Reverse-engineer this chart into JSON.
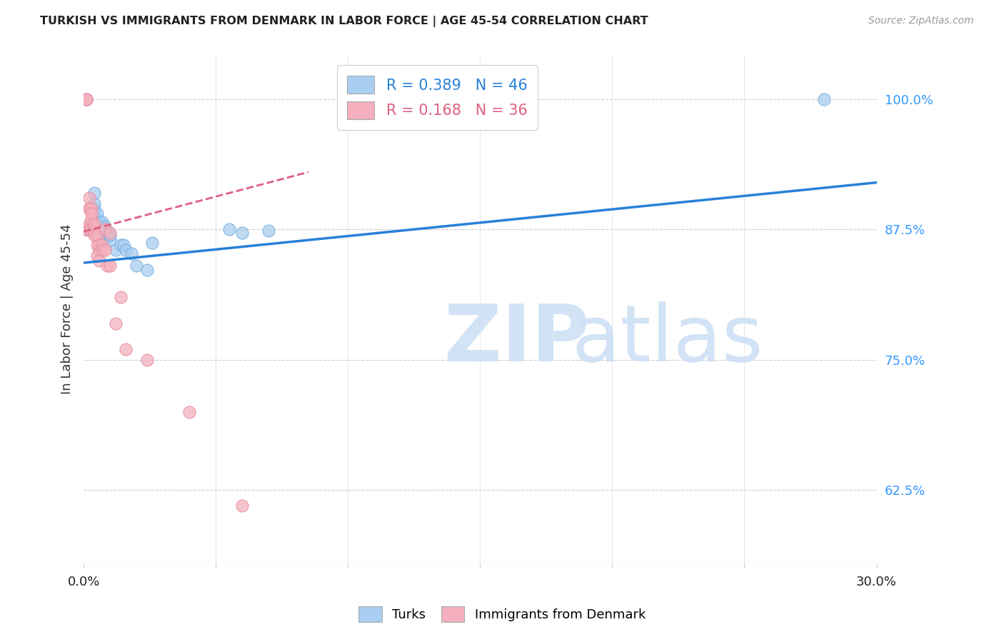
{
  "title": "TURKISH VS IMMIGRANTS FROM DENMARK IN LABOR FORCE | AGE 45-54 CORRELATION CHART",
  "source": "Source: ZipAtlas.com",
  "ylabel": "In Labor Force | Age 45-54",
  "yticks": [
    0.625,
    0.75,
    0.875,
    1.0
  ],
  "ytick_labels": [
    "62.5%",
    "75.0%",
    "87.5%",
    "100.0%"
  ],
  "xlim": [
    0.0,
    0.3
  ],
  "ylim": [
    0.555,
    1.042
  ],
  "turks_color": "#a8cef0",
  "denmark_color": "#f4b0be",
  "turks_edge_color": "#7ab0e0",
  "denmark_edge_color": "#e890a0",
  "turks_line_color": "#2980d9",
  "denmark_line_color": "#e06080",
  "turks_x": [
    0.001,
    0.001,
    0.001,
    0.002,
    0.002,
    0.002,
    0.002,
    0.002,
    0.003,
    0.003,
    0.003,
    0.003,
    0.003,
    0.004,
    0.004,
    0.004,
    0.004,
    0.004,
    0.005,
    0.005,
    0.005,
    0.005,
    0.006,
    0.006,
    0.006,
    0.007,
    0.007,
    0.007,
    0.008,
    0.008,
    0.009,
    0.009,
    0.01,
    0.01,
    0.012,
    0.014,
    0.015,
    0.016,
    0.018,
    0.02,
    0.024,
    0.026,
    0.055,
    0.06,
    0.07,
    0.28
  ],
  "turks_y": [
    0.875,
    0.875,
    0.875,
    0.875,
    0.875,
    0.875,
    0.875,
    0.875,
    0.875,
    0.875,
    0.875,
    0.88,
    0.88,
    0.88,
    0.89,
    0.895,
    0.9,
    0.91,
    0.875,
    0.88,
    0.885,
    0.89,
    0.875,
    0.878,
    0.882,
    0.875,
    0.878,
    0.882,
    0.875,
    0.878,
    0.868,
    0.872,
    0.865,
    0.87,
    0.855,
    0.86,
    0.86,
    0.855,
    0.852,
    0.84,
    0.836,
    0.862,
    0.875,
    0.872,
    0.874,
    1.0
  ],
  "denmark_x": [
    0.001,
    0.001,
    0.001,
    0.001,
    0.001,
    0.002,
    0.002,
    0.002,
    0.002,
    0.003,
    0.003,
    0.003,
    0.003,
    0.003,
    0.004,
    0.004,
    0.004,
    0.005,
    0.005,
    0.005,
    0.006,
    0.006,
    0.006,
    0.007,
    0.007,
    0.008,
    0.008,
    0.009,
    0.01,
    0.01,
    0.012,
    0.014,
    0.016,
    0.024,
    0.04,
    0.06
  ],
  "denmark_y": [
    1.0,
    1.0,
    1.0,
    0.875,
    0.875,
    0.895,
    0.905,
    0.895,
    0.88,
    0.875,
    0.885,
    0.895,
    0.875,
    0.89,
    0.875,
    0.88,
    0.87,
    0.86,
    0.85,
    0.87,
    0.855,
    0.86,
    0.845,
    0.86,
    0.855,
    0.875,
    0.855,
    0.84,
    0.872,
    0.84,
    0.785,
    0.81,
    0.76,
    0.75,
    0.7,
    0.61
  ],
  "turks_trendline_x": [
    0.0,
    0.3
  ],
  "turks_trendline_y": [
    0.843,
    0.92
  ],
  "denmark_trendline_x": [
    0.0,
    0.085
  ],
  "denmark_trendline_y": [
    0.873,
    0.93
  ],
  "watermark_zip": "ZIP",
  "watermark_atlas": "atlas"
}
